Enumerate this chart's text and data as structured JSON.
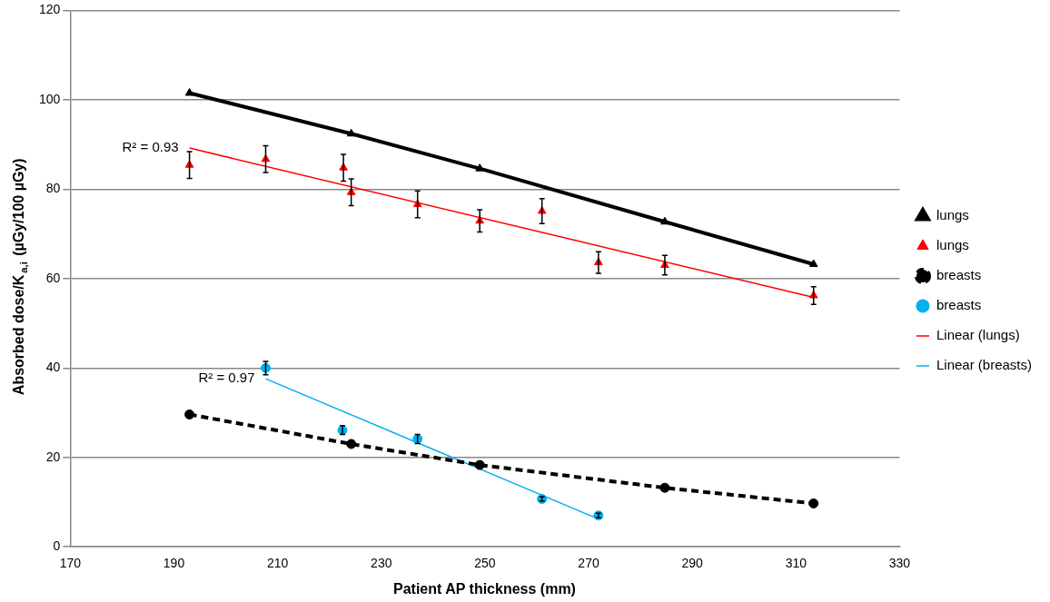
{
  "chart_data": {
    "type": "scatter",
    "xlabel": "Patient AP thickness (mm)",
    "ylabel": "Absorbed dose/K$_{a,i}$ (µGy/100 µGy)",
    "xlim": [
      170,
      330
    ],
    "xticks": [
      170,
      190,
      210,
      230,
      250,
      270,
      290,
      310,
      330
    ],
    "ylim": [
      0,
      120
    ],
    "yticks": [
      0,
      20,
      40,
      60,
      80,
      100,
      120
    ],
    "grid": "y",
    "legend": "right",
    "series": [
      {
        "name": "lungs",
        "type": "line",
        "color": "#000000",
        "marker": "triangle",
        "line_style": "solid",
        "x": [
          193,
          224.2,
          249,
          284.7,
          313.4
        ],
        "values": [
          101.5,
          92.4,
          84.6,
          72.7,
          63.2
        ]
      },
      {
        "name": "lungs",
        "type": "scatter",
        "color": "#ff0000",
        "marker": "triangle",
        "x": [
          193,
          207.7,
          222.7,
          224.2,
          237,
          249,
          261,
          271.9,
          284.7,
          313.4
        ],
        "values": [
          85.4,
          86.7,
          84.8,
          79.3,
          76.6,
          72.9,
          75.1,
          63.6,
          63,
          56.2
        ],
        "errors": [
          3,
          3,
          3,
          3,
          3,
          2.5,
          2.8,
          2.4,
          2.2,
          2
        ]
      },
      {
        "name": "breasts",
        "type": "line",
        "color": "#000000",
        "marker": "circle",
        "line_style": "dashed",
        "x": [
          193,
          224.2,
          249,
          284.7,
          313.4
        ],
        "values": [
          29.6,
          23,
          18.3,
          13.2,
          9.7
        ]
      },
      {
        "name": "breasts",
        "type": "scatter",
        "color": "#00b0f0",
        "marker": "circle",
        "x": [
          207.7,
          222.5,
          237,
          261,
          271.9
        ],
        "values": [
          40,
          26.1,
          24.1,
          10.7,
          7
        ],
        "errors": [
          1.5,
          1,
          1,
          0.5,
          0.5
        ]
      },
      {
        "name": "Linear (lungs)",
        "type": "line",
        "color": "#ff0000",
        "marker": "none",
        "line_style": "solid",
        "x": [
          193,
          313.4
        ],
        "values": [
          89.2,
          55.8
        ]
      },
      {
        "name": "Linear (breasts)",
        "type": "line",
        "color": "#00b0f0",
        "marker": "none",
        "line_style": "solid",
        "x": [
          207.7,
          271.9
        ],
        "values": [
          37.6,
          6.2
        ]
      }
    ],
    "annotations": [
      {
        "text": "R² = 0.93",
        "x": 193,
        "y": 89.2
      },
      {
        "text": "R² = 0.97",
        "x": 207.7,
        "y": 37.6
      }
    ]
  }
}
